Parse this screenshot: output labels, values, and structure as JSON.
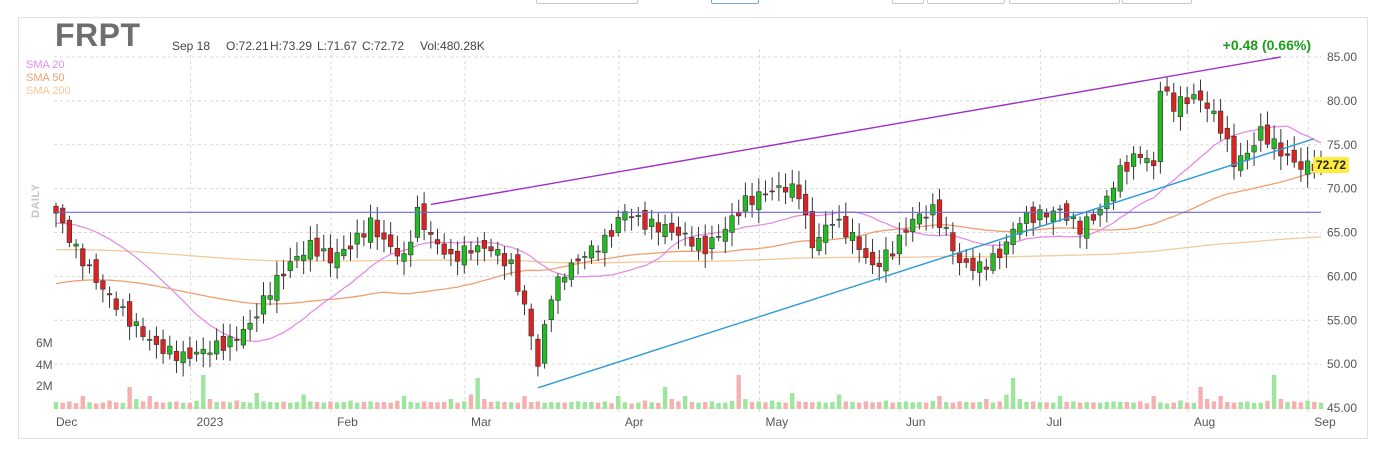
{
  "header": {
    "ticker": "FRPT",
    "date": "Sep 18",
    "open": "O:72.21",
    "high": "H:73.29",
    "low": "L:71.67",
    "close": "C:72.72",
    "volume": "Vol:480.28K",
    "change": "+0.48 (0.66%)",
    "period": "DAILY",
    "last_price": "72.72"
  },
  "legend": [
    {
      "label": "SMA 20",
      "color": "#e38ee3"
    },
    {
      "label": "SMA 50",
      "color": "#f0a070"
    },
    {
      "label": "SMA 200",
      "color": "#f5c99a"
    }
  ],
  "colors": {
    "up": "#22bb22",
    "down": "#dd2222",
    "vol_up": "#9ee69e",
    "vol_down": "#f6b0b0",
    "grid": "#d8d8d8",
    "trendline_upper": "#a030c8",
    "trendline_lower": "#2a9ad8",
    "horizontal_line": "#6a6ad8",
    "price_tag": "#ffec3d"
  },
  "chart_data": {
    "type": "candlestick",
    "y_axis": {
      "range": [
        45,
        85
      ],
      "ticks": [
        "85.00",
        "80.00",
        "75.00",
        "70.00",
        "65.00",
        "60.00",
        "55.00",
        "50.00",
        "45.00"
      ],
      "position": "right"
    },
    "volume_axis": {
      "ticks": [
        "6M",
        "4M",
        "2M"
      ],
      "position": "left"
    },
    "x_axis": {
      "labels": [
        "Dec",
        "2023",
        "Feb",
        "Mar",
        "Apr",
        "May",
        "Jun",
        "Jul",
        "Aug",
        "Sep"
      ]
    },
    "grid": true,
    "anchors": [
      [
        0,
        67.2
      ],
      [
        3,
        63
      ],
      [
        7,
        58.5
      ],
      [
        11,
        55
      ],
      [
        15,
        52
      ],
      [
        19,
        50.8
      ],
      [
        22,
        51.5
      ],
      [
        26,
        52.5
      ],
      [
        29,
        54.5
      ],
      [
        32,
        58.5
      ],
      [
        35,
        61.5
      ],
      [
        38,
        63.5
      ],
      [
        41,
        62
      ],
      [
        44,
        63.5
      ],
      [
        47,
        66
      ],
      [
        49,
        64
      ],
      [
        52,
        62
      ],
      [
        54,
        67.2
      ],
      [
        56,
        64.5
      ],
      [
        59,
        62
      ],
      [
        62,
        63.2
      ],
      [
        65,
        63.2
      ],
      [
        68,
        61.2
      ],
      [
        70,
        56.5
      ],
      [
        72,
        50
      ],
      [
        74,
        58
      ],
      [
        76,
        60.5
      ],
      [
        79,
        62.5
      ],
      [
        82,
        64
      ],
      [
        85,
        67.5
      ],
      [
        88,
        66
      ],
      [
        91,
        65.5
      ],
      [
        94,
        64.5
      ],
      [
        97,
        63.2
      ],
      [
        100,
        65.5
      ],
      [
        103,
        68.5
      ],
      [
        106,
        69.5
      ],
      [
        109,
        70.2
      ],
      [
        111,
        69.5
      ],
      [
        113,
        63.5
      ],
      [
        116,
        66.5
      ],
      [
        119,
        64.5
      ],
      [
        122,
        61
      ],
      [
        125,
        63
      ],
      [
        128,
        66.5
      ],
      [
        131,
        67.5
      ],
      [
        133,
        65
      ],
      [
        135,
        61.5
      ],
      [
        138,
        61
      ],
      [
        141,
        62.5
      ],
      [
        144,
        66.5
      ],
      [
        147,
        67
      ],
      [
        150,
        67.5
      ],
      [
        153,
        65.5
      ],
      [
        156,
        67.5
      ],
      [
        159,
        72
      ],
      [
        162,
        74
      ],
      [
        164,
        72.5
      ],
      [
        165,
        81.5
      ],
      [
        167,
        79.5
      ],
      [
        170,
        80.5
      ],
      [
        172,
        79.5
      ],
      [
        174,
        77
      ],
      [
        176,
        73
      ],
      [
        178,
        74
      ],
      [
        180,
        76.5
      ],
      [
        182,
        75
      ],
      [
        184,
        73.5
      ],
      [
        186,
        72.5
      ],
      [
        188,
        72.72
      ]
    ],
    "volume_levels": [
      0.1,
      0.08,
      0.12,
      0.06,
      0.3,
      0.09,
      0.05,
      0.08,
      0.15,
      0.09,
      0.07,
      0.6,
      0.2,
      0.12,
      0.3,
      0.1,
      0.08,
      0.1,
      0.12,
      0.07,
      0.08,
      0.14,
      1.0,
      0.2,
      0.1,
      0.12,
      0.09,
      0.15,
      0.1,
      0.08,
      0.4,
      0.12,
      0.1,
      0.09,
      0.11,
      0.08,
      0.1,
      0.35,
      0.12,
      0.1,
      0.08,
      0.12,
      0.09,
      0.1,
      0.15,
      0.08,
      0.1,
      0.12,
      0.09,
      0.1,
      0.08,
      0.14,
      0.3,
      0.1,
      0.08,
      0.12,
      0.1,
      0.09,
      0.1,
      0.2,
      0.08,
      0.12,
      0.35,
      0.9,
      0.2,
      0.1,
      0.12,
      0.1,
      0.09,
      0.08,
      0.3,
      0.1,
      0.12,
      0.08,
      0.1,
      0.09,
      0.08,
      0.1,
      0.12,
      0.1
    ]
  }
}
